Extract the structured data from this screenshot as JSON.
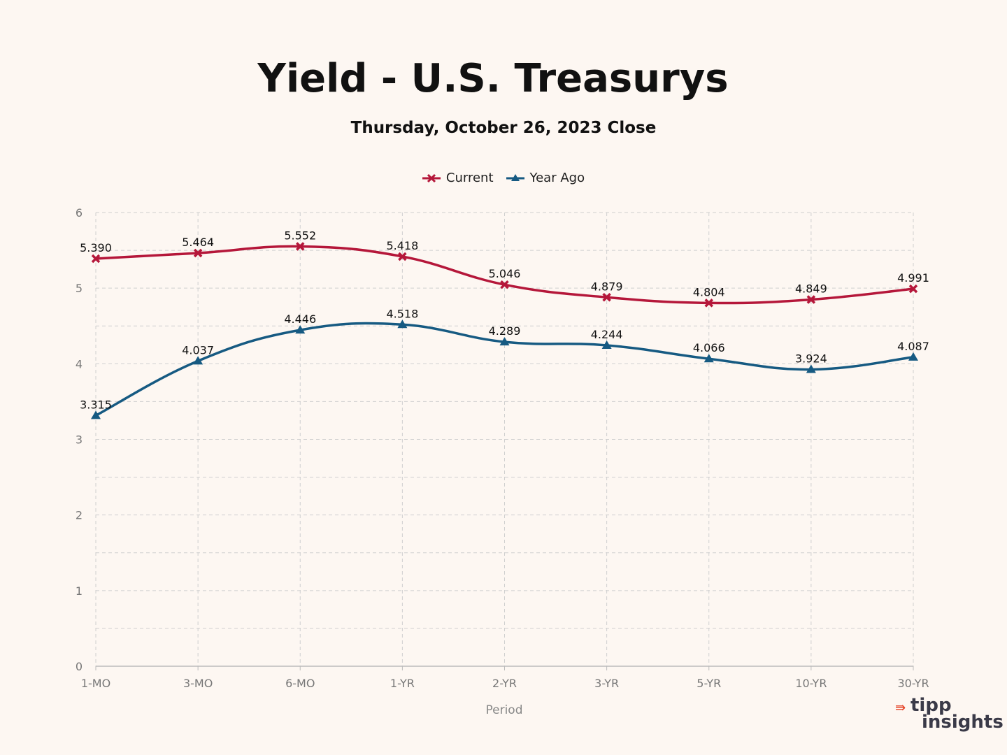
{
  "chart_data": {
    "type": "line",
    "title": "Yield - U.S. Treasurys",
    "subtitle": "Thursday, October 26, 2023 Close",
    "xlabel": "Period",
    "ylabel": "",
    "categories": [
      "1-MO",
      "3-MO",
      "6-MO",
      "1-YR",
      "2-YR",
      "3-YR",
      "5-YR",
      "10-YR",
      "30-YR"
    ],
    "ylim": [
      0,
      6
    ],
    "yticks": [
      "0",
      "1",
      "2",
      "3",
      "4",
      "5",
      "6"
    ],
    "grid": true,
    "legend_position": "top-center",
    "series": [
      {
        "name": "Current",
        "color": "#b5173a",
        "marker": "x",
        "values": [
          5.39,
          5.464,
          5.552,
          5.418,
          5.046,
          4.879,
          4.804,
          4.849,
          4.991
        ],
        "labels": [
          "5.390",
          "5.464",
          "5.552",
          "5.418",
          "5.046",
          "4.879",
          "4.804",
          "4.849",
          "4.991"
        ]
      },
      {
        "name": "Year Ago",
        "color": "#165a82",
        "marker": "triangle",
        "values": [
          3.315,
          4.037,
          4.446,
          4.518,
          4.289,
          4.244,
          4.066,
          3.924,
          4.087
        ],
        "labels": [
          "3.315",
          "4.037",
          "4.446",
          "4.518",
          "4.289",
          "4.244",
          "4.066",
          "3.924",
          "4.087"
        ]
      }
    ]
  },
  "logo": {
    "top": "tipp",
    "bottom": "insights",
    "arrow": "⇛"
  }
}
